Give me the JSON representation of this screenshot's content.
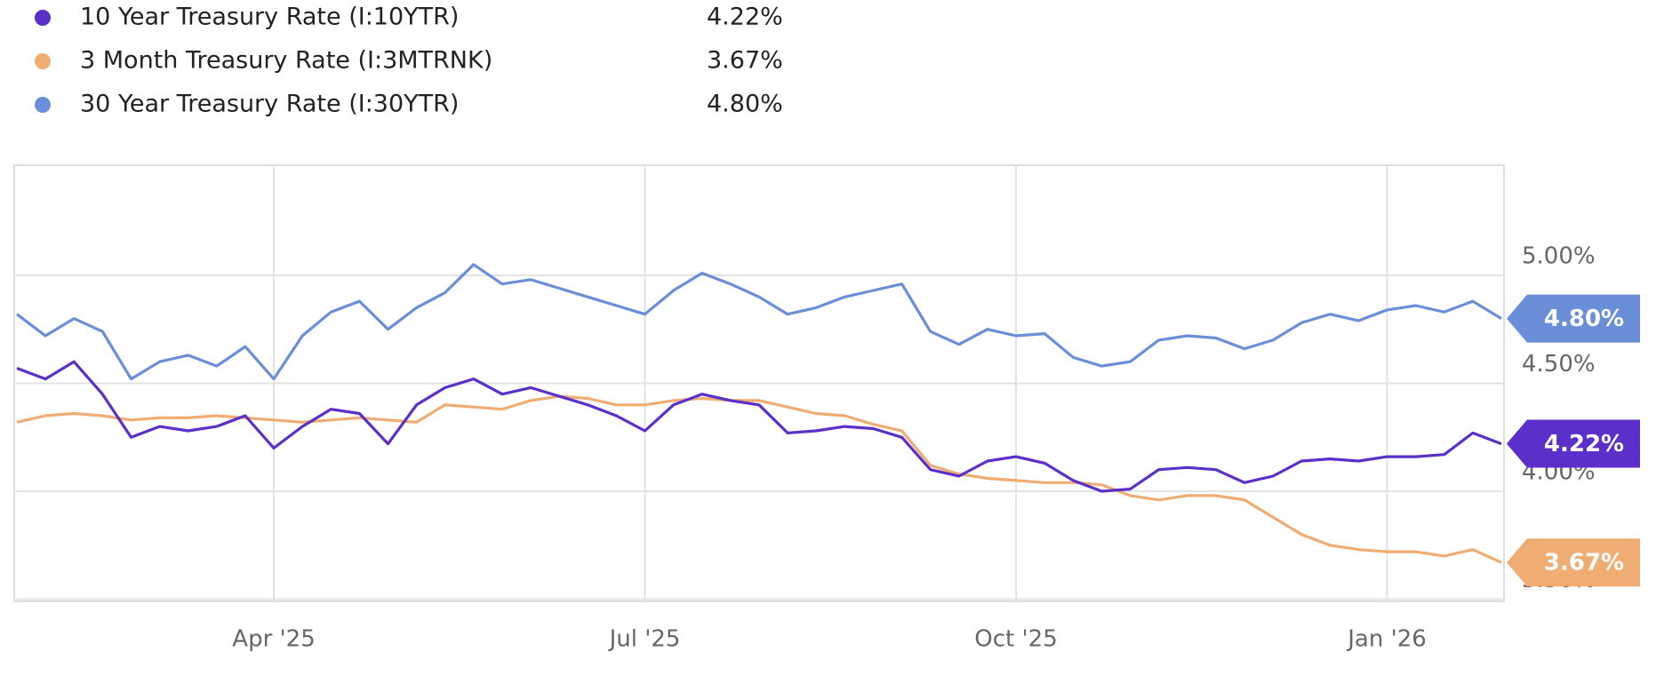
{
  "chart_data": {
    "type": "line",
    "categories": [
      null,
      null,
      null,
      null,
      null,
      null,
      null,
      null,
      null,
      "Apr '25",
      null,
      null,
      null,
      null,
      null,
      null,
      null,
      null,
      null,
      null,
      null,
      null,
      "Jul '25",
      null,
      null,
      null,
      null,
      null,
      null,
      null,
      null,
      null,
      null,
      null,
      null,
      "Oct '25",
      null,
      null,
      null,
      null,
      null,
      null,
      null,
      null,
      null,
      null,
      null,
      null,
      "Jan '26",
      null,
      null,
      null,
      null
    ],
    "series": [
      {
        "name": "10 Year Treasury Rate (I:10YTR)",
        "color": "#5b2fc9",
        "latest": {
          "value": 4.22,
          "label": "4.22%"
        },
        "values": [
          4.57,
          4.52,
          4.6,
          4.45,
          4.25,
          4.3,
          4.28,
          4.3,
          4.35,
          4.2,
          4.3,
          4.38,
          4.36,
          4.22,
          4.4,
          4.48,
          4.52,
          4.45,
          4.48,
          4.44,
          4.4,
          4.35,
          4.28,
          4.4,
          4.45,
          4.42,
          4.4,
          4.27,
          4.28,
          4.3,
          4.29,
          4.25,
          4.1,
          4.07,
          4.14,
          4.16,
          4.13,
          4.05,
          4.0,
          4.01,
          4.1,
          4.11,
          4.1,
          4.04,
          4.07,
          4.14,
          4.15,
          4.14,
          4.16,
          4.16,
          4.17,
          4.27,
          4.22
        ]
      },
      {
        "name": "3 Month Treasury Rate (I:3MTRNK)",
        "color": "#efac73",
        "latest": {
          "value": 3.67,
          "label": "3.67%"
        },
        "values": [
          4.32,
          4.35,
          4.36,
          4.35,
          4.33,
          4.34,
          4.34,
          4.35,
          4.34,
          4.33,
          4.32,
          4.33,
          4.34,
          4.33,
          4.32,
          4.4,
          4.39,
          4.38,
          4.42,
          4.44,
          4.43,
          4.4,
          4.4,
          4.42,
          4.43,
          4.42,
          4.42,
          4.39,
          4.36,
          4.35,
          4.31,
          4.28,
          4.12,
          4.08,
          4.06,
          4.05,
          4.04,
          4.04,
          4.03,
          3.98,
          3.96,
          3.98,
          3.98,
          3.96,
          3.88,
          3.8,
          3.75,
          3.73,
          3.72,
          3.72,
          3.7,
          3.73,
          3.67
        ]
      },
      {
        "name": "30 Year Treasury Rate (I:30YTR)",
        "color": "#6a8fd8",
        "latest": {
          "value": 4.8,
          "label": "4.80%"
        },
        "values": [
          4.82,
          4.72,
          4.8,
          4.74,
          4.52,
          4.6,
          4.63,
          4.58,
          4.67,
          4.52,
          4.72,
          4.83,
          4.88,
          4.75,
          4.85,
          4.92,
          5.05,
          4.96,
          4.98,
          4.94,
          4.9,
          4.86,
          4.82,
          4.93,
          5.01,
          4.96,
          4.9,
          4.82,
          4.85,
          4.9,
          4.93,
          4.96,
          4.74,
          4.68,
          4.75,
          4.72,
          4.73,
          4.62,
          4.58,
          4.6,
          4.7,
          4.72,
          4.71,
          4.66,
          4.7,
          4.78,
          4.82,
          4.79,
          4.84,
          4.86,
          4.83,
          4.88,
          4.8
        ]
      }
    ],
    "ylim": [
      3.49,
      5.51
    ],
    "yticks": [
      {
        "value": 3.5,
        "label": "3.50%"
      },
      {
        "value": 4.0,
        "label": "4.00%"
      },
      {
        "value": 4.5,
        "label": "4.50%"
      },
      {
        "value": 5.0,
        "label": "5.00%"
      }
    ],
    "grid": true
  }
}
